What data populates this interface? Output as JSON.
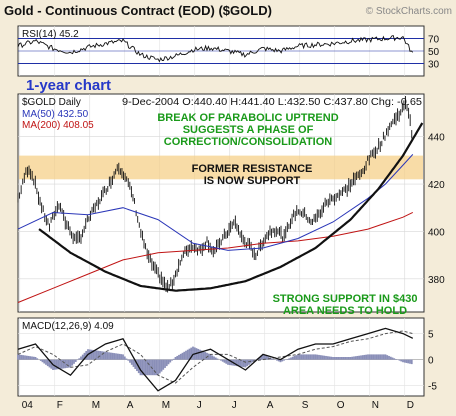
{
  "header": {
    "title": "Gold - Continuous Contract (EOD) ($GOLD)",
    "watermark": "© StockCharts.com"
  },
  "rsi_panel": {
    "label": "RSI(14) 45.2",
    "levels": [
      70,
      50,
      30
    ],
    "range": [
      10,
      90
    ],
    "tick_labels": [
      "70",
      "50",
      "30"
    ],
    "line_color": "#1f2fa6"
  },
  "badge": {
    "text": "1-year chart",
    "color": "#2638c8"
  },
  "price_panel": {
    "symbol_label": "$GOLD Daily",
    "ohlc_text": "9-Dec-2004  O:440.40  H:441.40  L:432.50  C:437.80  Chg: -0.65",
    "ma50_label": "MA(50) 432.50",
    "ma200_label": "MA(200) 408.05",
    "ma50_color": "#2a36b8",
    "ma200_color": "#c01414",
    "ylim": [
      366,
      458
    ],
    "y_ticks": [
      380,
      400,
      420,
      440
    ],
    "support_band": [
      422,
      432
    ],
    "support_band_color": "#f5d08a"
  },
  "annotations": {
    "break_text_1": "BREAK OF PARABOLIC UPTREND",
    "break_text_2": "SUGGESTS A PHASE OF",
    "break_text_3": "CORRECTION/CONSOLIDATION",
    "resistance_text_1": "FORMER RESISTANCE",
    "resistance_text_2": "IS NOW SUPPORT",
    "support_text_1": "STRONG SUPPORT IN $430",
    "support_text_2": "AREA NEEDS TO HOLD",
    "green_color": "#1a9a1a"
  },
  "macd_panel": {
    "label": "MACD(12,26,9) 4.09",
    "ylim": [
      -7,
      8
    ],
    "y_ticks": [
      5,
      0,
      -5
    ],
    "histogram_color": "#8a8fb8"
  },
  "x_axis": {
    "months": [
      "04",
      "F",
      "M",
      "A",
      "M",
      "J",
      "J",
      "A",
      "S",
      "O",
      "N",
      "D"
    ]
  },
  "chart_data": {
    "type": "line",
    "x_unit": "month index (0 = Jan 2004)",
    "price": {
      "name": "$GOLD Daily",
      "x": [
        0,
        0.1,
        0.2,
        0.3,
        0.45,
        0.6,
        0.75,
        0.9,
        1.05,
        1.2,
        1.35,
        1.5,
        1.65,
        1.8,
        2.0,
        2.2,
        2.4,
        2.6,
        2.75,
        2.85,
        3.0,
        3.15,
        3.3,
        3.5,
        3.7,
        3.9,
        4.1,
        4.25,
        4.4,
        4.6,
        4.8,
        5.0,
        5.2,
        5.4,
        5.6,
        5.8,
        6.0,
        6.2,
        6.4,
        6.6,
        6.8,
        7.0,
        7.2,
        7.4,
        7.6,
        7.8,
        8.0,
        8.2,
        8.4,
        8.6,
        8.8,
        9.0,
        9.2,
        9.4,
        9.6,
        9.8,
        10.0,
        10.2,
        10.4,
        10.6,
        10.8,
        11.0,
        11.1,
        11.2,
        11.28
      ],
      "y": [
        414,
        418,
        424,
        427,
        422,
        414,
        407,
        402,
        408,
        412,
        404,
        400,
        396,
        398,
        405,
        410,
        415,
        420,
        424,
        428,
        425,
        420,
        414,
        400,
        390,
        384,
        380,
        376,
        378,
        386,
        392,
        394,
        392,
        396,
        391,
        396,
        400,
        404,
        397,
        394,
        390,
        396,
        400,
        401,
        397,
        405,
        409,
        407,
        404,
        407,
        412,
        414,
        416,
        418,
        422,
        424,
        430,
        434,
        438,
        444,
        448,
        452,
        454,
        448,
        437.8
      ]
    },
    "ma50": {
      "name": "MA(50)",
      "x": [
        0,
        1,
        2,
        3,
        4,
        5,
        6,
        7,
        8,
        9,
        10,
        10.5,
        11,
        11.28
      ],
      "y": [
        401,
        408,
        407,
        410,
        405,
        395,
        392,
        393,
        397,
        404,
        414,
        420,
        428,
        432.5
      ]
    },
    "ma200": {
      "name": "MA(200)",
      "x": [
        0,
        1,
        2,
        3,
        4,
        5,
        6,
        7,
        8,
        9,
        10,
        11,
        11.28
      ],
      "y": [
        370,
        376,
        382,
        388,
        391,
        392,
        393,
        395,
        396,
        398,
        401,
        406,
        408.05
      ]
    },
    "parabola": {
      "x": [
        0.6,
        1.5,
        2.5,
        3.5,
        4.5,
        5.5,
        6.5,
        7.5,
        8.5,
        9.5,
        10.3,
        11.0,
        11.6
      ],
      "y": [
        401,
        391,
        383,
        377,
        375,
        376,
        379,
        385,
        393,
        405,
        418,
        432,
        447
      ]
    },
    "rsi": {
      "name": "RSI(14)",
      "x": [
        0,
        0.5,
        1,
        1.5,
        2,
        2.5,
        3,
        3.5,
        4,
        4.5,
        5,
        5.5,
        6,
        6.5,
        7,
        7.5,
        8,
        8.5,
        9,
        9.5,
        10,
        10.5,
        11,
        11.28
      ],
      "y": [
        58,
        66,
        54,
        48,
        56,
        62,
        66,
        44,
        36,
        42,
        52,
        55,
        50,
        44,
        54,
        50,
        58,
        60,
        62,
        66,
        68,
        70,
        72,
        45.2
      ]
    },
    "macd": {
      "name": "MACD(12,26,9)",
      "x": [
        0,
        0.5,
        1,
        1.5,
        2,
        2.5,
        3,
        3.5,
        4,
        4.5,
        5,
        5.5,
        6,
        6.5,
        7,
        7.5,
        8,
        8.5,
        9,
        9.5,
        10,
        10.5,
        11,
        11.28
      ],
      "y": [
        2,
        3,
        -1,
        -3,
        1,
        3,
        4,
        -2,
        -6,
        -4,
        1,
        2,
        0,
        -2,
        1,
        0,
        2,
        3,
        3,
        4,
        5,
        6,
        5,
        4.09
      ]
    },
    "macd_signal": {
      "x": [
        0,
        0.5,
        1,
        1.5,
        2,
        2.5,
        3,
        3.5,
        4,
        4.5,
        5,
        5.5,
        6,
        6.5,
        7,
        7.5,
        8,
        8.5,
        9,
        9.5,
        10,
        10.5,
        11,
        11.28
      ],
      "y": [
        1,
        2.5,
        1,
        -1.5,
        -1,
        1.5,
        3,
        1,
        -3,
        -4.5,
        -1.5,
        1,
        1,
        -0.5,
        0,
        0.5,
        1,
        2,
        2.5,
        3.5,
        4,
        5,
        5.5,
        5
      ]
    }
  }
}
